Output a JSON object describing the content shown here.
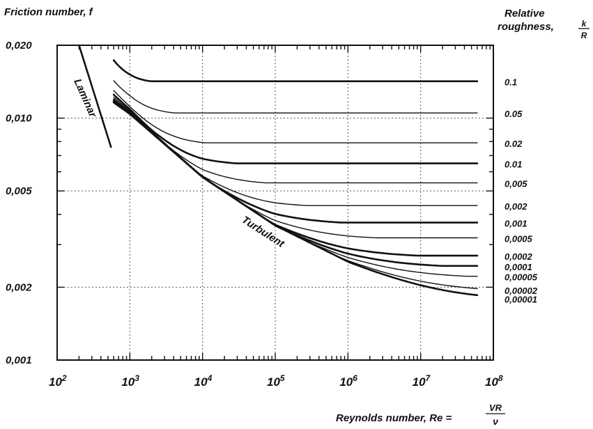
{
  "chart_data": {
    "type": "line",
    "title": "Friction number, f",
    "ylabel": "Friction number, f",
    "xlabel_prefix": "Reynolds number, Re =",
    "xlabel_fraction": {
      "numerator": "VR",
      "denominator": "ν"
    },
    "legend_title_text": "Relative roughness,",
    "legend_title_line1": "Relative",
    "legend_title_line2": "roughness,",
    "legend_title_fraction": {
      "numerator": "k",
      "denominator": "R"
    },
    "x_scale": "log",
    "y_scale": "log",
    "xlim": [
      100,
      100000000
    ],
    "ylim": [
      0.001,
      0.02
    ],
    "grid": true,
    "x_ticks": [
      {
        "value": 100,
        "base": "10",
        "exp": "2"
      },
      {
        "value": 1000,
        "base": "10",
        "exp": "3"
      },
      {
        "value": 10000,
        "base": "10",
        "exp": "4"
      },
      {
        "value": 100000,
        "base": "10",
        "exp": "5"
      },
      {
        "value": 1000000,
        "base": "10",
        "exp": "6"
      },
      {
        "value": 10000000,
        "base": "10",
        "exp": "7"
      },
      {
        "value": 100000000,
        "base": "10",
        "exp": "8"
      }
    ],
    "y_ticks": [
      {
        "value": 0.001,
        "label": "0,001"
      },
      {
        "value": 0.002,
        "label": "0,002"
      },
      {
        "value": 0.005,
        "label": "0,005"
      },
      {
        "value": 0.01,
        "label": "0,010"
      },
      {
        "value": 0.02,
        "label": "0,020"
      }
    ],
    "annotations": {
      "laminar": "Laminar",
      "turbulent": "Turbulent"
    },
    "laminar_line": {
      "x": [
        200,
        550
      ],
      "y": [
        0.02,
        0.0076
      ]
    },
    "turbulent_series": [
      {
        "label": "0.1",
        "f_rough": 0.0142,
        "f_start": 0.0168,
        "bold": true
      },
      {
        "label": "0.05",
        "f_rough": 0.0105,
        "f_start": 0.0142,
        "bold": false
      },
      {
        "label": "0.02",
        "f_rough": 0.0079,
        "f_start": 0.013,
        "bold": false
      },
      {
        "label": "0.01",
        "f_rough": 0.0065,
        "f_start": 0.0125,
        "bold": true
      },
      {
        "label": "0,005",
        "f_rough": 0.0054,
        "f_start": 0.0122,
        "bold": false
      },
      {
        "label": "0,002",
        "f_rough": 0.00435,
        "f_start": 0.012,
        "bold": false
      },
      {
        "label": "0,001",
        "f_rough": 0.0037,
        "f_start": 0.0119,
        "bold": true
      },
      {
        "label": "0,0005",
        "f_rough": 0.0032,
        "f_start": 0.0118,
        "bold": false
      },
      {
        "label": "0,0002",
        "f_rough": 0.0027,
        "f_start": 0.0117,
        "bold": true
      },
      {
        "label": "0,0001",
        "f_rough": 0.00245,
        "f_start": 0.0117,
        "bold": true
      },
      {
        "label": "0,00005",
        "f_rough": 0.00222,
        "f_start": 0.0116,
        "bold": false
      },
      {
        "label": "0,00002",
        "f_rough": 0.00195,
        "f_start": 0.0116,
        "bold": false
      },
      {
        "label": "0,00001",
        "f_rough": 0.0018,
        "f_start": 0.0116,
        "bold": true
      }
    ],
    "smooth_curve": {
      "x": [
        600,
        1000,
        10000,
        100000,
        1000000,
        10000000
      ],
      "y": [
        0.0116,
        0.0104,
        0.0057,
        0.0036,
        0.00255,
        0.0019
      ]
    },
    "series_x_start": 600,
    "series_x_end": 60000000
  }
}
